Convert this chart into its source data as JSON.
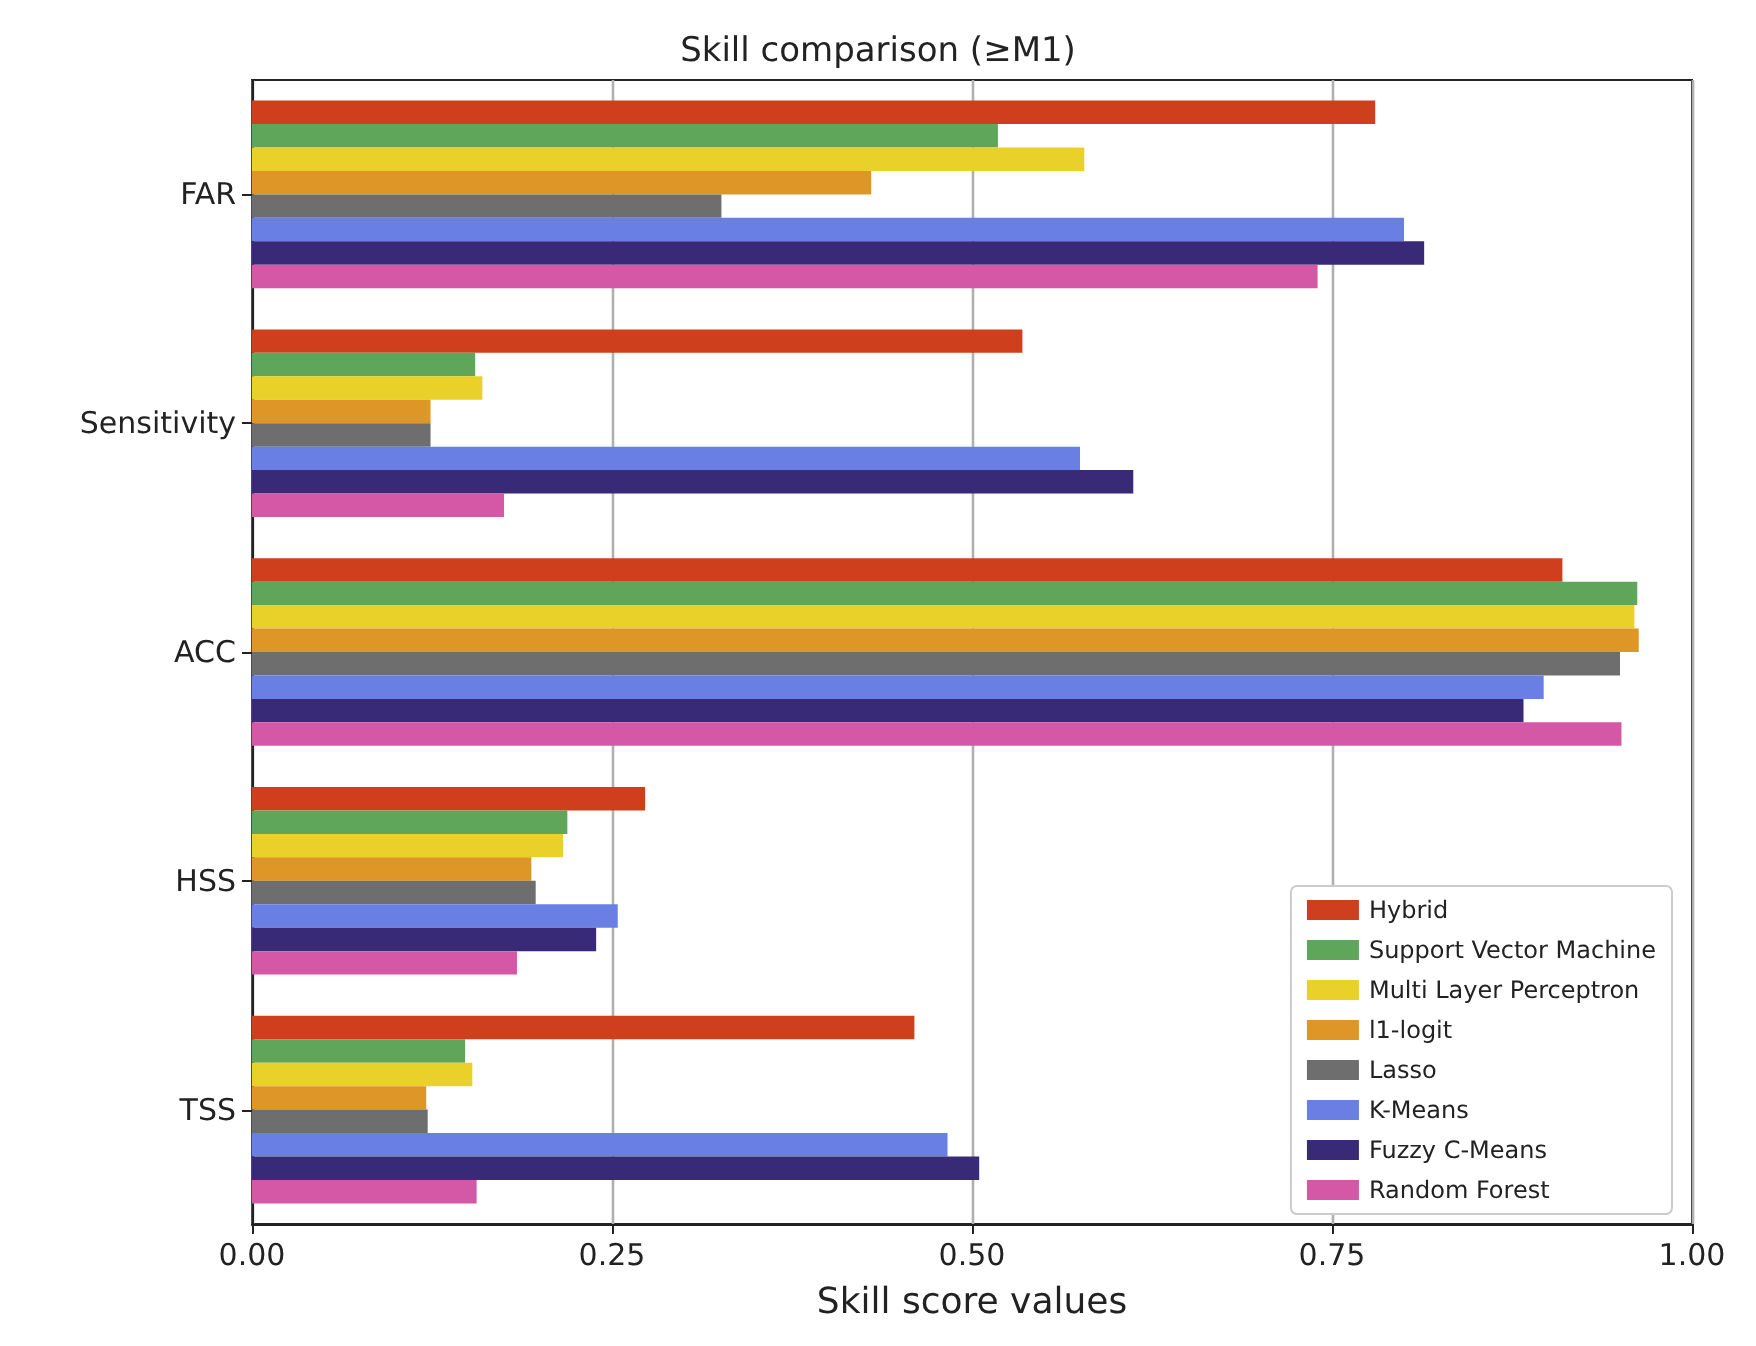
{
  "chart_data": {
    "type": "bar",
    "orientation": "horizontal",
    "title": "Skill comparison (≥M1)",
    "xlabel": "Skill score values",
    "categories": [
      "FAR",
      "Sensitivity",
      "ACC",
      "HSS",
      "TSS"
    ],
    "series": [
      {
        "name": "Hybrid",
        "color": "#cf3f1d",
        "values": [
          0.78,
          0.535,
          0.91,
          0.273,
          0.46
        ]
      },
      {
        "name": "Support Vector Machine",
        "color": "#5fa55a",
        "values": [
          0.518,
          0.155,
          0.962,
          0.219,
          0.148
        ]
      },
      {
        "name": "Multi Layer Perceptron",
        "color": "#ead12a",
        "values": [
          0.578,
          0.16,
          0.96,
          0.216,
          0.153
        ]
      },
      {
        "name": "l1-logit",
        "color": "#de9726",
        "values": [
          0.43,
          0.124,
          0.963,
          0.194,
          0.121
        ]
      },
      {
        "name": "Lasso",
        "color": "#6e6e6e",
        "values": [
          0.326,
          0.124,
          0.95,
          0.197,
          0.122
        ]
      },
      {
        "name": "K-Means",
        "color": "#6a7fe3",
        "values": [
          0.8,
          0.575,
          0.897,
          0.254,
          0.483
        ]
      },
      {
        "name": "Fuzzy C-Means",
        "color": "#382a77",
        "values": [
          0.814,
          0.612,
          0.883,
          0.239,
          0.505
        ]
      },
      {
        "name": "Random Forest",
        "color": "#d458a5",
        "values": [
          0.74,
          0.175,
          0.951,
          0.184,
          0.156
        ]
      }
    ],
    "xlim": [
      0,
      1
    ],
    "xticks": [
      {
        "value": 0,
        "label": "0.00"
      },
      {
        "value": 0.25,
        "label": "0.25"
      },
      {
        "value": 0.5,
        "label": "0.50"
      },
      {
        "value": 0.75,
        "label": "0.75"
      },
      {
        "value": 1,
        "label": "1.00"
      }
    ],
    "grid": "x",
    "legend": "bottom right"
  }
}
